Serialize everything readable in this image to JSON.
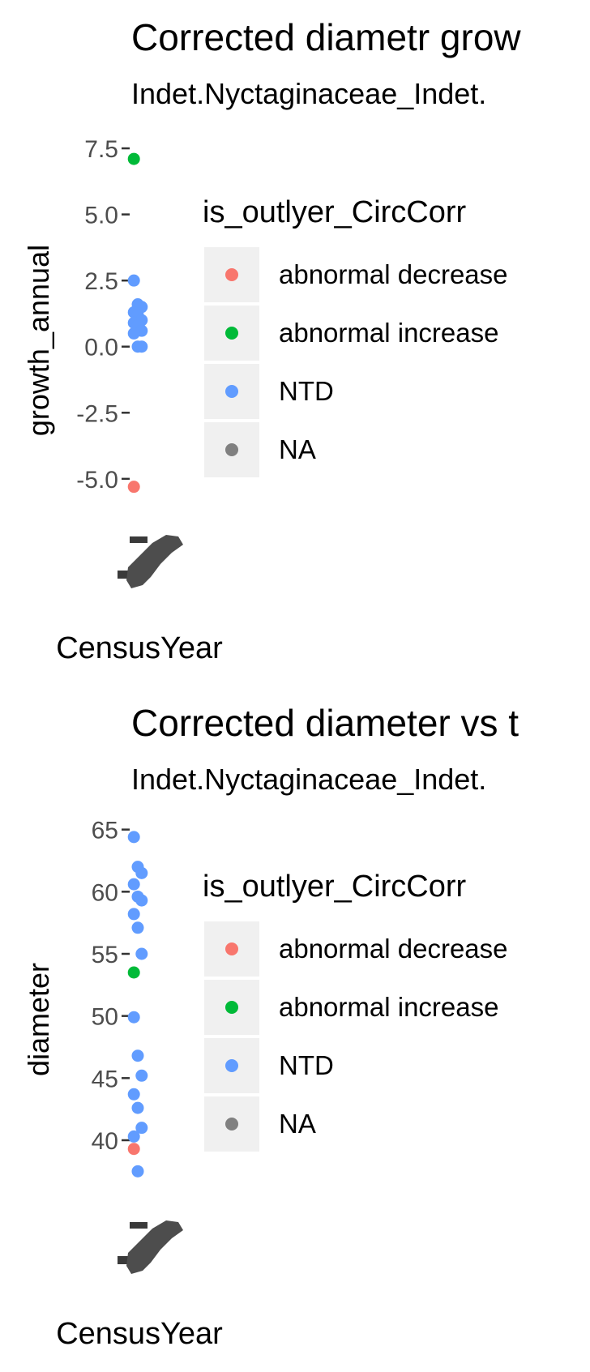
{
  "chart_data": [
    {
      "type": "scatter",
      "title": "Corrected diametr grow",
      "subtitle": "Indet.Nyctaginaceae_Indet.",
      "xlabel": "CensusYear",
      "ylabel": "growth_annual",
      "yticks": [
        "7.5",
        "5.0",
        "2.5",
        "0.0",
        "-2.5",
        "-5.0"
      ],
      "ylim": [
        -6.2,
        7.9
      ],
      "legend": {
        "title": "is_outlyer_CircCorr",
        "position": "right",
        "entries": [
          {
            "label": "abnormal decrease",
            "color": "#F8766D"
          },
          {
            "label": "abnormal increase",
            "color": "#00BA38"
          },
          {
            "label": "NTD",
            "color": "#619CFF"
          },
          {
            "label": "NA",
            "color": "#808080"
          }
        ]
      },
      "series": [
        {
          "name": "abnormal decrease",
          "color": "#F8766D",
          "points": [
            {
              "y": -5.3
            }
          ]
        },
        {
          "name": "abnormal increase",
          "color": "#00BA38",
          "points": [
            {
              "y": 7.1
            }
          ]
        },
        {
          "name": "NTD",
          "color": "#619CFF",
          "points": [
            {
              "y": 2.5
            },
            {
              "y": 1.6
            },
            {
              "y": 1.5
            },
            {
              "y": 1.3
            },
            {
              "y": 1.2
            },
            {
              "y": 1.0
            },
            {
              "y": 0.9
            },
            {
              "y": 0.8
            },
            {
              "y": 0.6
            },
            {
              "y": 0.5
            },
            {
              "y": 0.0
            },
            {
              "y": 0.0
            }
          ]
        }
      ]
    },
    {
      "type": "scatter",
      "title": "Corrected diameter vs t",
      "subtitle": "Indet.Nyctaginaceae_Indet.",
      "xlabel": "CensusYear",
      "ylabel": "diameter",
      "yticks": [
        "65",
        "60",
        "55",
        "50",
        "45",
        "40"
      ],
      "ylim": [
        35.5,
        65.5
      ],
      "legend": {
        "title": "is_outlyer_CircCorr",
        "position": "right",
        "entries": [
          {
            "label": "abnormal decrease",
            "color": "#F8766D"
          },
          {
            "label": "abnormal increase",
            "color": "#00BA38"
          },
          {
            "label": "NTD",
            "color": "#619CFF"
          },
          {
            "label": "NA",
            "color": "#808080"
          }
        ]
      },
      "series": [
        {
          "name": "abnormal decrease",
          "color": "#F8766D",
          "points": [
            {
              "y": 39.3
            }
          ]
        },
        {
          "name": "abnormal increase",
          "color": "#00BA38",
          "points": [
            {
              "y": 53.5
            }
          ]
        },
        {
          "name": "NTD",
          "color": "#619CFF",
          "points": [
            {
              "y": 64.4
            },
            {
              "y": 62.0
            },
            {
              "y": 61.5
            },
            {
              "y": 60.6
            },
            {
              "y": 59.6
            },
            {
              "y": 59.3
            },
            {
              "y": 58.2
            },
            {
              "y": 57.1
            },
            {
              "y": 55.0
            },
            {
              "y": 49.9
            },
            {
              "y": 46.8
            },
            {
              "y": 45.2
            },
            {
              "y": 43.7
            },
            {
              "y": 42.6
            },
            {
              "y": 41.0
            },
            {
              "y": 40.3
            },
            {
              "y": 37.5
            }
          ]
        }
      ]
    }
  ]
}
